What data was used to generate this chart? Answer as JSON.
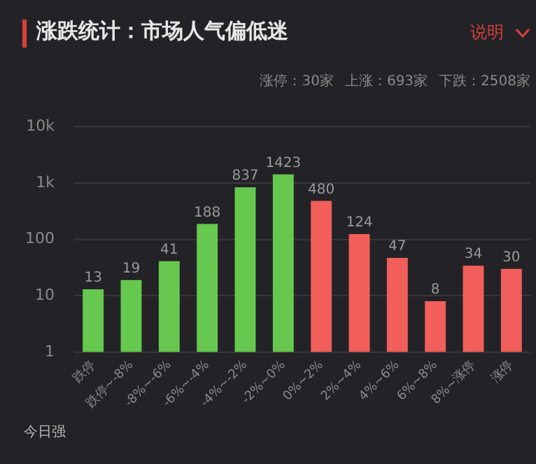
{
  "chart_data": {
    "type": "bar",
    "title": "涨跌统计：市场人气偏低迷",
    "categories": [
      "跌停",
      "跌停~-8%",
      "-8%~-6%",
      "-6%~-4%",
      "-4%~-2%",
      "-2%~0%",
      "0%~2%",
      "2%~4%",
      "4%~6%",
      "6%~8%",
      "8%~涨停",
      "涨停"
    ],
    "values": [
      13,
      19,
      41,
      188,
      837,
      1423,
      480,
      124,
      47,
      8,
      34,
      30
    ],
    "colors": [
      "#66c84e",
      "#66c84e",
      "#66c84e",
      "#66c84e",
      "#66c84e",
      "#66c84e",
      "#f25f5a",
      "#f25f5a",
      "#f25f5a",
      "#f25f5a",
      "#f25f5a",
      "#f25f5a"
    ],
    "log": "y",
    "ylim": [
      1,
      10000
    ],
    "yticks": [
      1,
      10,
      100,
      {
        "value": 1000,
        "label": "1k"
      },
      {
        "value": 10000,
        "label": "10k"
      }
    ],
    "grid": "y",
    "data_labels": true,
    "annotations": [
      "说明",
      "涨停：30家",
      "上涨：693家",
      "下跌：2508家",
      "今日强"
    ]
  }
}
